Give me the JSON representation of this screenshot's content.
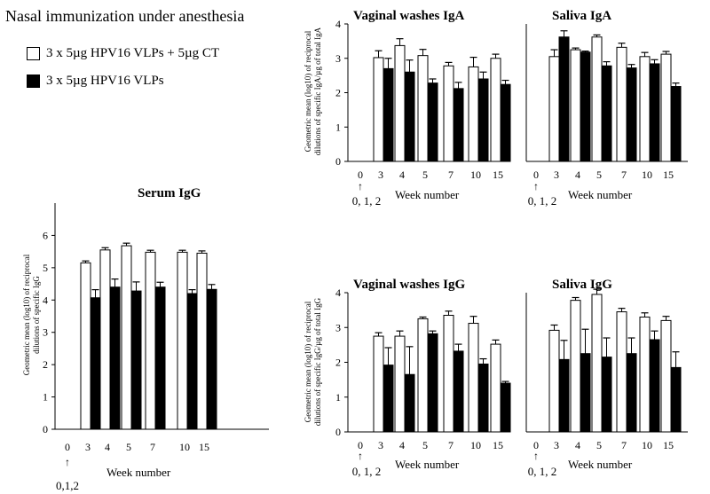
{
  "figure_title": "Nasal immunization under anesthesia",
  "legend": [
    {
      "label": "3 x 5µg HPV16 VLPs + 5µg CT",
      "style": "open"
    },
    {
      "label": "3 x 5µg HPV16 VLPs",
      "style": "filled"
    }
  ],
  "colors": {
    "open": "#ffffff",
    "filled": "#000000",
    "stroke": "#000000"
  },
  "chart_data": [
    {
      "id": "serum-igg",
      "type": "bar",
      "title": "Serum IgG",
      "ylabel_lines": [
        "Geometric mean (log10) of reciprocal",
        "dilutions of specific IgG"
      ],
      "xlabel": "Week number",
      "immunization_label": "0,1,2",
      "categories": [
        "0",
        "3",
        "4",
        "5",
        "7",
        "10",
        "15"
      ],
      "ylim": [
        0,
        7
      ],
      "yticks": [
        0,
        1,
        2,
        3,
        4,
        5,
        6
      ],
      "series": [
        {
          "name": "3 x 5µg HPV16 VLPs + 5µg CT",
          "style": "open",
          "values": [
            null,
            5.15,
            5.55,
            5.68,
            5.48,
            5.48,
            5.45
          ],
          "errors": [
            null,
            0.06,
            0.07,
            0.08,
            0.06,
            0.06,
            0.07
          ]
        },
        {
          "name": "3 x 5µg HPV16 VLPs",
          "style": "filled",
          "values": [
            null,
            4.07,
            4.4,
            4.28,
            4.4,
            4.2,
            4.33
          ],
          "errors": [
            null,
            0.25,
            0.25,
            0.28,
            0.15,
            0.12,
            0.15
          ]
        }
      ]
    },
    {
      "id": "vaginal-iga",
      "type": "bar",
      "title": "Vaginal washes IgA",
      "ylabel_lines": [
        "Geometric mean (log10) of reciprocal",
        "dilutions of specific IgA/µg of total IgA"
      ],
      "xlabel": "Week number",
      "immunization_label": "0, 1, 2",
      "categories": [
        "0",
        "3",
        "4",
        "5",
        "7",
        "10",
        "15"
      ],
      "ylim": [
        0,
        4
      ],
      "yticks": [
        0,
        1,
        2,
        3,
        4
      ],
      "series": [
        {
          "name": "3 x 5µg HPV16 VLPs + 5µg CT",
          "style": "open",
          "values": [
            null,
            3.02,
            3.37,
            3.08,
            2.78,
            2.75,
            3.0
          ],
          "errors": [
            null,
            0.2,
            0.2,
            0.18,
            0.1,
            0.28,
            0.12
          ]
        },
        {
          "name": "3 x 5µg HPV16 VLPs",
          "style": "filled",
          "values": [
            null,
            2.7,
            2.6,
            2.28,
            2.12,
            2.4,
            2.24
          ],
          "errors": [
            null,
            0.3,
            0.35,
            0.12,
            0.18,
            0.2,
            0.12
          ]
        }
      ]
    },
    {
      "id": "saliva-iga",
      "type": "bar",
      "title": "Saliva IgA",
      "ylabel_lines": [],
      "xlabel": "Week number",
      "immunization_label": "0, 1, 2",
      "categories": [
        "0",
        "3",
        "4",
        "5",
        "7",
        "10",
        "15"
      ],
      "ylim": [
        0,
        4
      ],
      "yticks": [],
      "series": [
        {
          "name": "3 x 5µg HPV16 VLPs + 5µg CT",
          "style": "open",
          "values": [
            null,
            3.05,
            3.25,
            3.62,
            3.32,
            3.05,
            3.12
          ],
          "errors": [
            null,
            0.2,
            0.05,
            0.06,
            0.12,
            0.12,
            0.08
          ]
        },
        {
          "name": "3 x 5µg HPV16 VLPs",
          "style": "filled",
          "values": [
            null,
            3.62,
            3.18,
            2.78,
            2.72,
            2.84,
            2.18
          ],
          "errors": [
            null,
            0.18,
            0.03,
            0.12,
            0.1,
            0.12,
            0.1
          ]
        }
      ]
    },
    {
      "id": "vaginal-igg",
      "type": "bar",
      "title": "Vaginal washes IgG",
      "ylabel_lines": [
        "Geometric mean (log10) of reciprocal",
        "dilutions of specific IgG/µg of total IgG"
      ],
      "xlabel": "Week number",
      "immunization_label": "0, 1, 2",
      "categories": [
        "0",
        "3",
        "4",
        "5",
        "7",
        "10",
        "15"
      ],
      "ylim": [
        0,
        4
      ],
      "yticks": [
        0,
        1,
        2,
        3,
        4
      ],
      "series": [
        {
          "name": "3 x 5µg HPV16 VLPs + 5µg CT",
          "style": "open",
          "values": [
            null,
            2.75,
            2.75,
            3.25,
            3.35,
            3.12,
            2.52
          ],
          "errors": [
            null,
            0.1,
            0.15,
            0.05,
            0.12,
            0.2,
            0.12
          ]
        },
        {
          "name": "3 x 5µg HPV16 VLPs",
          "style": "filled",
          "values": [
            null,
            1.92,
            1.65,
            2.82,
            2.32,
            1.95,
            1.4
          ],
          "errors": [
            null,
            0.5,
            0.8,
            0.08,
            0.2,
            0.15,
            0.05
          ]
        }
      ]
    },
    {
      "id": "saliva-igg",
      "type": "bar",
      "title": "Saliva IgG",
      "ylabel_lines": [],
      "xlabel": "Week number",
      "immunization_label": "0, 1, 2",
      "categories": [
        "0",
        "3",
        "4",
        "5",
        "7",
        "10",
        "15"
      ],
      "ylim": [
        0,
        4
      ],
      "yticks": [],
      "series": [
        {
          "name": "3 x 5µg HPV16 VLPs + 5µg CT",
          "style": "open",
          "values": [
            null,
            2.92,
            3.78,
            3.95,
            3.45,
            3.3,
            3.2
          ],
          "errors": [
            null,
            0.15,
            0.08,
            0.15,
            0.1,
            0.12,
            0.12
          ]
        },
        {
          "name": "3 x 5µg HPV16 VLPs",
          "style": "filled",
          "values": [
            null,
            2.08,
            2.25,
            2.15,
            2.25,
            2.65,
            1.85
          ],
          "errors": [
            null,
            0.55,
            0.7,
            0.55,
            0.45,
            0.25,
            0.45
          ]
        }
      ]
    }
  ]
}
